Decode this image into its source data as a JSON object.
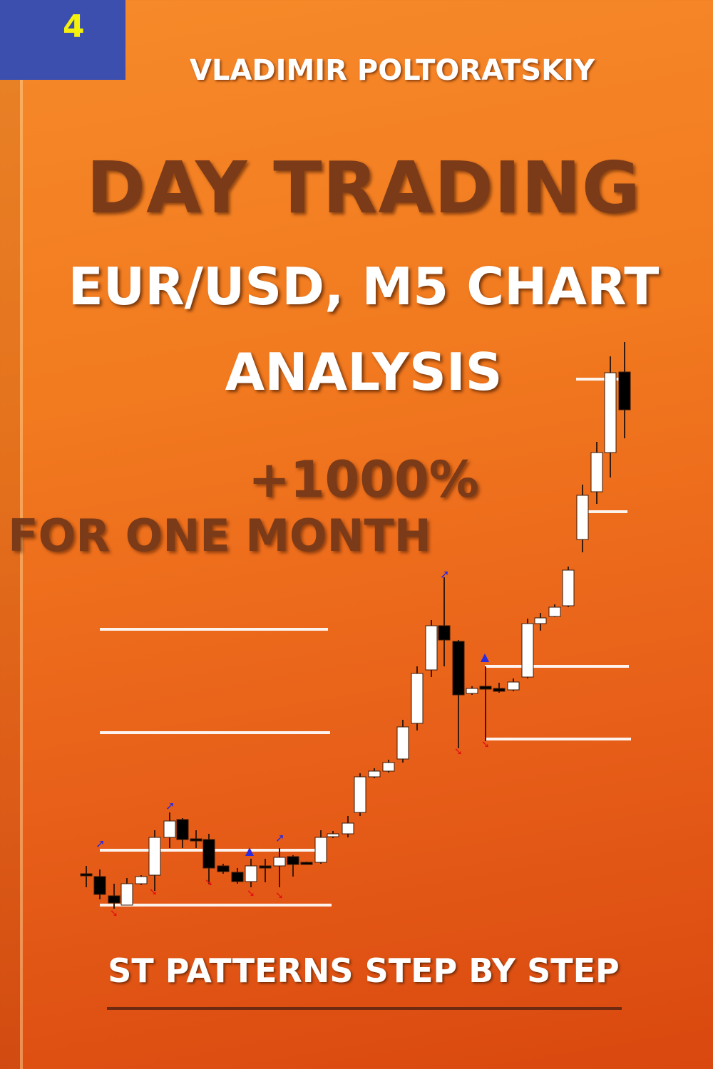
{
  "cover": {
    "volume_number": "4",
    "author": "VLADIMIR POLTORATSKIY",
    "title": "DAY TRADING",
    "subtitle_line1": "EUR/USD, M5 CHART",
    "subtitle_line2": "ANALYSIS",
    "promo_line1": "+1000%",
    "promo_line2": "FOR ONE MONTH",
    "series_title": "ST PATTERNS STEP BY STEP"
  },
  "colors": {
    "background": "#f07a1e",
    "volume_box": "#3d4fae",
    "volume_number": "#f5f10c",
    "title": "#7b3a18",
    "text": "#ffffff",
    "bull_candle": "#ffffff",
    "bear_candle": "#000000",
    "up_arrow": "#2a2ae0",
    "down_arrow": "#e01010"
  },
  "illustration": "candlestick-chart"
}
